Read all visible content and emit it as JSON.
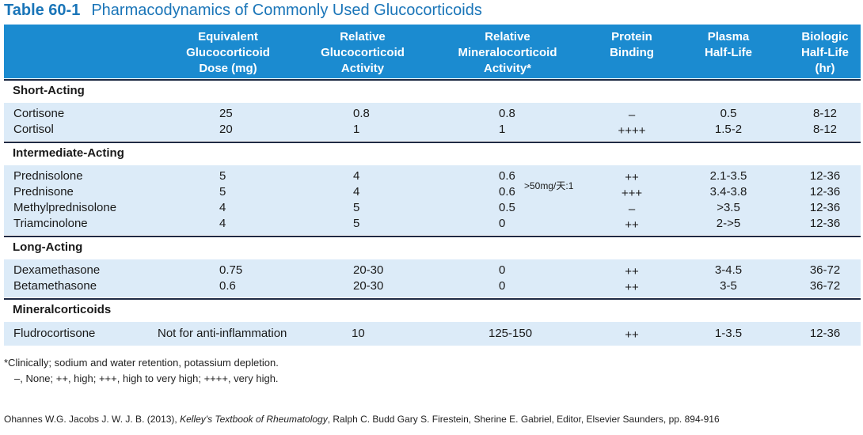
{
  "title": {
    "number": "Table 60-1",
    "text": "Pharmacodynamics of Commonly Used Glucocorticoids"
  },
  "headers": [
    "Equivalent\nGlucocorticoid\nDose (mg)",
    "Relative\nGlucocorticoid\nActivity",
    "Relative\nMineralocorticoid\nActivity*",
    "Protein\nBinding",
    "Plasma\nHalf-Life",
    "Biologic\nHalf-Life\n(hr)"
  ],
  "sections": [
    {
      "label": "Short-Acting",
      "rows": [
        [
          "Cortisone",
          "25",
          "0.8",
          "0.8",
          "–",
          "0.5",
          "8-12"
        ],
        [
          "Cortisol",
          "20",
          "1",
          "1",
          "++++",
          "1.5-2",
          "8-12"
        ]
      ]
    },
    {
      "label": "Intermediate-Acting",
      "rows": [
        [
          "Prednisolone",
          "5",
          "4",
          "0.6",
          "++",
          "2.1-3.5",
          "12-36"
        ],
        [
          "Prednisone",
          "5",
          "4",
          "0.6",
          "+++",
          "3.4-3.8",
          "12-36"
        ],
        [
          "Methylprednisolone",
          "4",
          "5",
          "0.5",
          "–",
          ">3.5",
          "12-36"
        ],
        [
          "Triamcinolone",
          "4",
          "5",
          "0",
          "++",
          "2->5",
          "12-36"
        ]
      ]
    },
    {
      "label": "Long-Acting",
      "rows": [
        [
          "Dexamethasone",
          "0.75",
          "20-30",
          "0",
          "++",
          "3-4.5",
          "36-72"
        ],
        [
          "Betamethasone",
          "0.6",
          "20-30",
          "0",
          "++",
          "3-5",
          "36-72"
        ]
      ]
    },
    {
      "label": "Mineralcorticoids",
      "rows": [
        [
          "Fludrocortisone",
          "Not for anti-inflammation",
          "10",
          "125-150",
          "++",
          "1-3.5",
          "12-36"
        ]
      ]
    }
  ],
  "annotation": ">50mg/天:1",
  "notes": [
    "*Clinically; sodium and water retention, potassium depletion.",
    "–, None; ++, high; +++, high to very high; ++++, very high."
  ],
  "citation": {
    "pre": "Ohannes W.G. Jacobs J. W. J. B. (2013), ",
    "book": "Kelley's Textbook of Rheumatology",
    "post": ", Ralph C. Budd Gary S. Firestein, Sherine E. Gabriel, Editor, Elsevier Saunders, pp. 894-916"
  },
  "colors": {
    "header_band": "#1b8bd0",
    "row_band": "#dcebf8",
    "title": "#1a75b8"
  }
}
